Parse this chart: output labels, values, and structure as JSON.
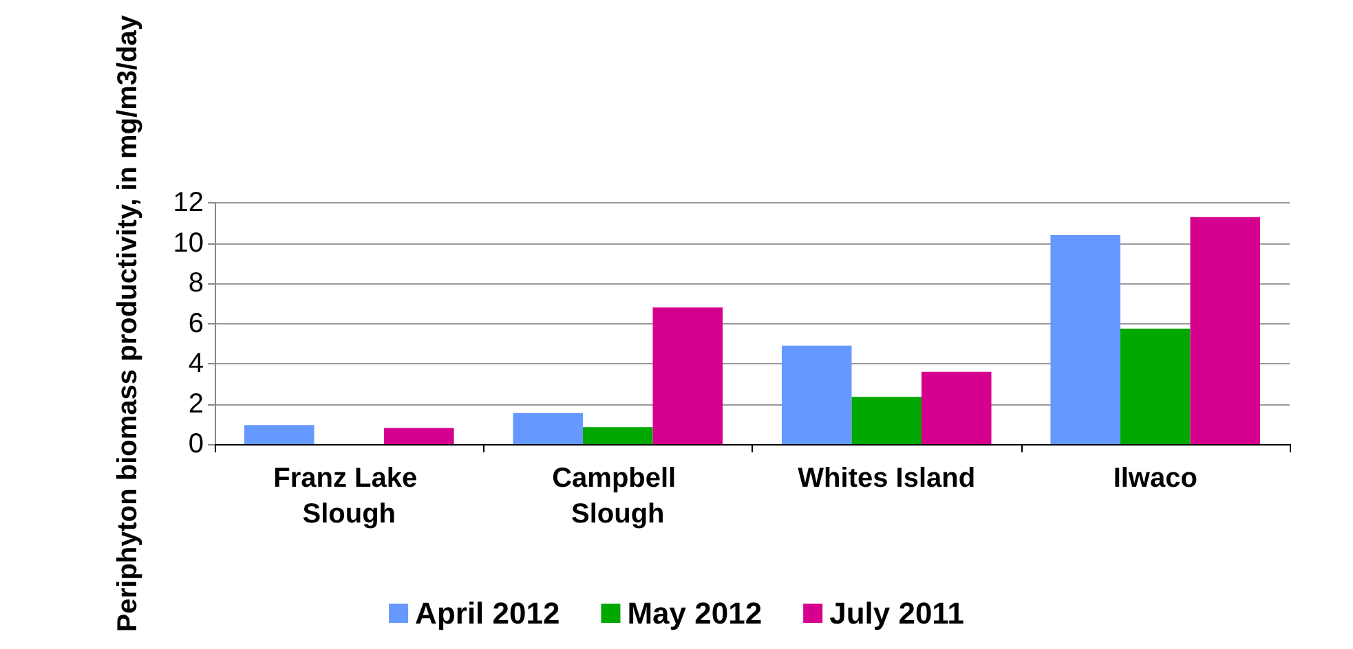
{
  "chart_data": {
    "type": "bar",
    "ylabel": "Periphyton biomass productivity, in mg/m3/day",
    "categories": [
      "Franz Lake Slough",
      "Campbell Slough",
      "Whites Island",
      "Ilwaco"
    ],
    "series": [
      {
        "name": "April 2012",
        "color": "#6699ff",
        "values": [
          0.95,
          1.55,
          4.9,
          10.4
        ]
      },
      {
        "name": "May 2012",
        "color": "#00a800",
        "values": [
          null,
          0.85,
          2.35,
          5.75
        ]
      },
      {
        "name": "July 2011",
        "color": "#d6008f",
        "values": [
          0.8,
          6.8,
          3.6,
          11.3
        ]
      }
    ],
    "ylim": [
      0,
      12
    ],
    "yticks": [
      0,
      2,
      4,
      6,
      8,
      10,
      12
    ],
    "grid": "y",
    "legend": "bottom"
  }
}
